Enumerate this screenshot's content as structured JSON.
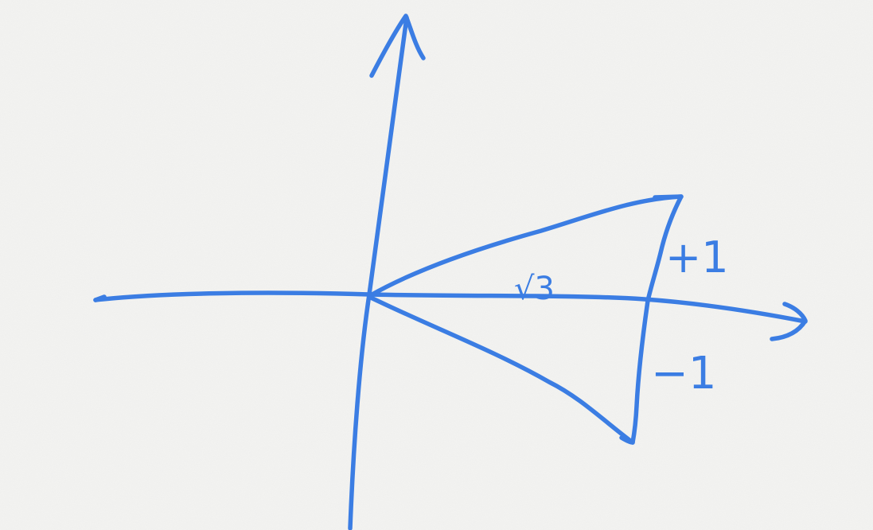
{
  "ink_color": "#3b7de3",
  "paper_color": "#f3f3f1",
  "labels": {
    "sqrt3": "√3",
    "plus_one": "+1",
    "minus_one": "−1"
  }
}
